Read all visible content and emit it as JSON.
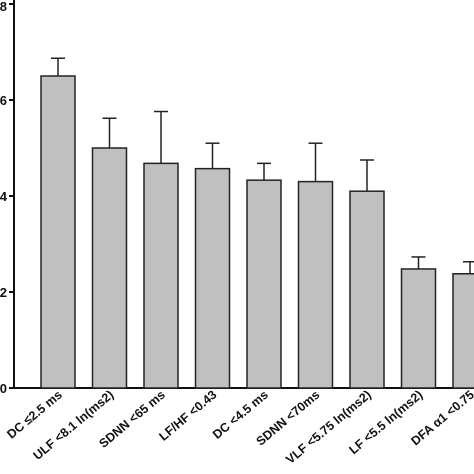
{
  "chart_data": {
    "type": "bar",
    "categories": [
      "DC ≤2.5 ms",
      "ULF <8.1 ln(ms2)",
      "SDNN <65 ms",
      "LF/HF <0.43",
      "DC <4.5 ms",
      "SDNN <70ms",
      "VLF <5.75 ln(ms2)",
      "LF <5.5 ln(ms2)",
      "DFA α1 <0.75"
    ],
    "values": [
      6.5,
      5.0,
      4.68,
      4.57,
      4.33,
      4.3,
      4.1,
      2.48,
      2.38
    ],
    "errors": [
      0.37,
      0.62,
      1.08,
      0.53,
      0.35,
      0.8,
      0.65,
      0.25,
      0.25
    ],
    "ylim": [
      0,
      8
    ],
    "yticks": [
      "0",
      "2",
      "4",
      "6",
      "8"
    ],
    "grid": false,
    "colors": {
      "bar_fill": "#c0c0c0",
      "bar_stroke": "#222222"
    }
  }
}
